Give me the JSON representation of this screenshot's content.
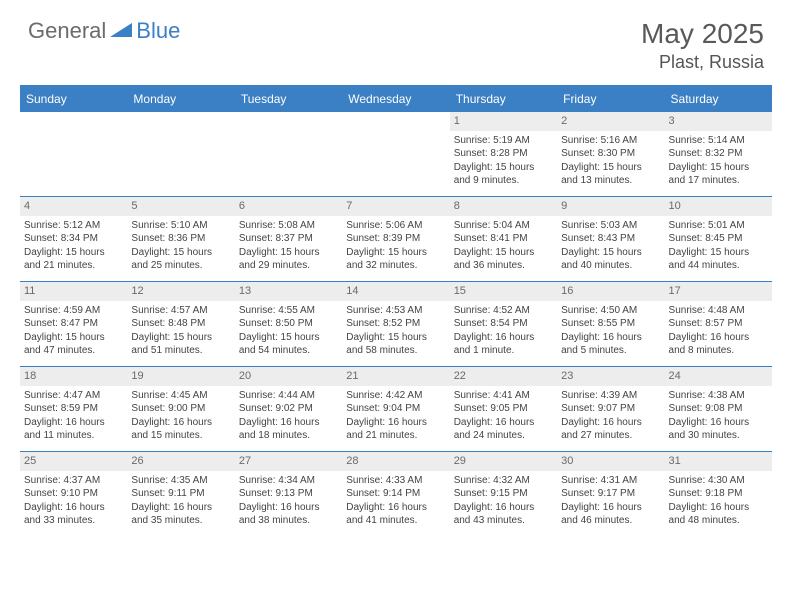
{
  "logo": {
    "general": "General",
    "blue": "Blue"
  },
  "title": "May 2025",
  "location": "Plast, Russia",
  "colors": {
    "accent": "#3b7fc4",
    "header_text": "#ffffff",
    "daynum_bg": "#ededed",
    "body_text": "#444444",
    "logo_gray": "#6b6b6b"
  },
  "day_headers": [
    "Sunday",
    "Monday",
    "Tuesday",
    "Wednesday",
    "Thursday",
    "Friday",
    "Saturday"
  ],
  "weeks": [
    [
      {
        "n": "",
        "sr": "",
        "ss": "",
        "dl": ""
      },
      {
        "n": "",
        "sr": "",
        "ss": "",
        "dl": ""
      },
      {
        "n": "",
        "sr": "",
        "ss": "",
        "dl": ""
      },
      {
        "n": "",
        "sr": "",
        "ss": "",
        "dl": ""
      },
      {
        "n": "1",
        "sr": "Sunrise: 5:19 AM",
        "ss": "Sunset: 8:28 PM",
        "dl": "Daylight: 15 hours and 9 minutes."
      },
      {
        "n": "2",
        "sr": "Sunrise: 5:16 AM",
        "ss": "Sunset: 8:30 PM",
        "dl": "Daylight: 15 hours and 13 minutes."
      },
      {
        "n": "3",
        "sr": "Sunrise: 5:14 AM",
        "ss": "Sunset: 8:32 PM",
        "dl": "Daylight: 15 hours and 17 minutes."
      }
    ],
    [
      {
        "n": "4",
        "sr": "Sunrise: 5:12 AM",
        "ss": "Sunset: 8:34 PM",
        "dl": "Daylight: 15 hours and 21 minutes."
      },
      {
        "n": "5",
        "sr": "Sunrise: 5:10 AM",
        "ss": "Sunset: 8:36 PM",
        "dl": "Daylight: 15 hours and 25 minutes."
      },
      {
        "n": "6",
        "sr": "Sunrise: 5:08 AM",
        "ss": "Sunset: 8:37 PM",
        "dl": "Daylight: 15 hours and 29 minutes."
      },
      {
        "n": "7",
        "sr": "Sunrise: 5:06 AM",
        "ss": "Sunset: 8:39 PM",
        "dl": "Daylight: 15 hours and 32 minutes."
      },
      {
        "n": "8",
        "sr": "Sunrise: 5:04 AM",
        "ss": "Sunset: 8:41 PM",
        "dl": "Daylight: 15 hours and 36 minutes."
      },
      {
        "n": "9",
        "sr": "Sunrise: 5:03 AM",
        "ss": "Sunset: 8:43 PM",
        "dl": "Daylight: 15 hours and 40 minutes."
      },
      {
        "n": "10",
        "sr": "Sunrise: 5:01 AM",
        "ss": "Sunset: 8:45 PM",
        "dl": "Daylight: 15 hours and 44 minutes."
      }
    ],
    [
      {
        "n": "11",
        "sr": "Sunrise: 4:59 AM",
        "ss": "Sunset: 8:47 PM",
        "dl": "Daylight: 15 hours and 47 minutes."
      },
      {
        "n": "12",
        "sr": "Sunrise: 4:57 AM",
        "ss": "Sunset: 8:48 PM",
        "dl": "Daylight: 15 hours and 51 minutes."
      },
      {
        "n": "13",
        "sr": "Sunrise: 4:55 AM",
        "ss": "Sunset: 8:50 PM",
        "dl": "Daylight: 15 hours and 54 minutes."
      },
      {
        "n": "14",
        "sr": "Sunrise: 4:53 AM",
        "ss": "Sunset: 8:52 PM",
        "dl": "Daylight: 15 hours and 58 minutes."
      },
      {
        "n": "15",
        "sr": "Sunrise: 4:52 AM",
        "ss": "Sunset: 8:54 PM",
        "dl": "Daylight: 16 hours and 1 minute."
      },
      {
        "n": "16",
        "sr": "Sunrise: 4:50 AM",
        "ss": "Sunset: 8:55 PM",
        "dl": "Daylight: 16 hours and 5 minutes."
      },
      {
        "n": "17",
        "sr": "Sunrise: 4:48 AM",
        "ss": "Sunset: 8:57 PM",
        "dl": "Daylight: 16 hours and 8 minutes."
      }
    ],
    [
      {
        "n": "18",
        "sr": "Sunrise: 4:47 AM",
        "ss": "Sunset: 8:59 PM",
        "dl": "Daylight: 16 hours and 11 minutes."
      },
      {
        "n": "19",
        "sr": "Sunrise: 4:45 AM",
        "ss": "Sunset: 9:00 PM",
        "dl": "Daylight: 16 hours and 15 minutes."
      },
      {
        "n": "20",
        "sr": "Sunrise: 4:44 AM",
        "ss": "Sunset: 9:02 PM",
        "dl": "Daylight: 16 hours and 18 minutes."
      },
      {
        "n": "21",
        "sr": "Sunrise: 4:42 AM",
        "ss": "Sunset: 9:04 PM",
        "dl": "Daylight: 16 hours and 21 minutes."
      },
      {
        "n": "22",
        "sr": "Sunrise: 4:41 AM",
        "ss": "Sunset: 9:05 PM",
        "dl": "Daylight: 16 hours and 24 minutes."
      },
      {
        "n": "23",
        "sr": "Sunrise: 4:39 AM",
        "ss": "Sunset: 9:07 PM",
        "dl": "Daylight: 16 hours and 27 minutes."
      },
      {
        "n": "24",
        "sr": "Sunrise: 4:38 AM",
        "ss": "Sunset: 9:08 PM",
        "dl": "Daylight: 16 hours and 30 minutes."
      }
    ],
    [
      {
        "n": "25",
        "sr": "Sunrise: 4:37 AM",
        "ss": "Sunset: 9:10 PM",
        "dl": "Daylight: 16 hours and 33 minutes."
      },
      {
        "n": "26",
        "sr": "Sunrise: 4:35 AM",
        "ss": "Sunset: 9:11 PM",
        "dl": "Daylight: 16 hours and 35 minutes."
      },
      {
        "n": "27",
        "sr": "Sunrise: 4:34 AM",
        "ss": "Sunset: 9:13 PM",
        "dl": "Daylight: 16 hours and 38 minutes."
      },
      {
        "n": "28",
        "sr": "Sunrise: 4:33 AM",
        "ss": "Sunset: 9:14 PM",
        "dl": "Daylight: 16 hours and 41 minutes."
      },
      {
        "n": "29",
        "sr": "Sunrise: 4:32 AM",
        "ss": "Sunset: 9:15 PM",
        "dl": "Daylight: 16 hours and 43 minutes."
      },
      {
        "n": "30",
        "sr": "Sunrise: 4:31 AM",
        "ss": "Sunset: 9:17 PM",
        "dl": "Daylight: 16 hours and 46 minutes."
      },
      {
        "n": "31",
        "sr": "Sunrise: 4:30 AM",
        "ss": "Sunset: 9:18 PM",
        "dl": "Daylight: 16 hours and 48 minutes."
      }
    ]
  ]
}
